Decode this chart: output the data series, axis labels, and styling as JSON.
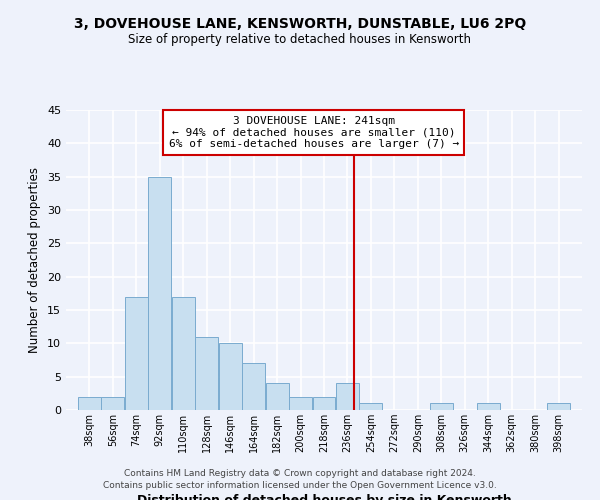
{
  "title1": "3, DOVEHOUSE LANE, KENSWORTH, DUNSTABLE, LU6 2PQ",
  "title2": "Size of property relative to detached houses in Kensworth",
  "xlabel": "Distribution of detached houses by size in Kensworth",
  "ylabel": "Number of detached properties",
  "bin_labels": [
    "38sqm",
    "56sqm",
    "74sqm",
    "92sqm",
    "110sqm",
    "128sqm",
    "146sqm",
    "164sqm",
    "182sqm",
    "200sqm",
    "218sqm",
    "236sqm",
    "254sqm",
    "272sqm",
    "290sqm",
    "308sqm",
    "326sqm",
    "344sqm",
    "362sqm",
    "380sqm",
    "398sqm"
  ],
  "bin_edges": [
    38,
    56,
    74,
    92,
    110,
    128,
    146,
    164,
    182,
    200,
    218,
    236,
    254,
    272,
    290,
    308,
    326,
    344,
    362,
    380,
    398
  ],
  "bar_heights": [
    2,
    2,
    17,
    35,
    17,
    11,
    10,
    7,
    4,
    2,
    2,
    4,
    1,
    0,
    0,
    1,
    0,
    1,
    0,
    0,
    1
  ],
  "bar_color": "#c8dff0",
  "bar_edge_color": "#7aabcf",
  "reference_line_x": 241,
  "reference_line_color": "#cc0000",
  "annotation_title": "3 DOVEHOUSE LANE: 241sqm",
  "annotation_line1": "← 94% of detached houses are smaller (110)",
  "annotation_line2": "6% of semi-detached houses are larger (7) →",
  "annotation_box_facecolor": "#ffffff",
  "annotation_box_edgecolor": "#cc0000",
  "ylim": [
    0,
    45
  ],
  "yticks": [
    0,
    5,
    10,
    15,
    20,
    25,
    30,
    35,
    40,
    45
  ],
  "footer1": "Contains HM Land Registry data © Crown copyright and database right 2024.",
  "footer2": "Contains public sector information licensed under the Open Government Licence v3.0.",
  "background_color": "#eef2fb",
  "grid_color": "#ffffff"
}
